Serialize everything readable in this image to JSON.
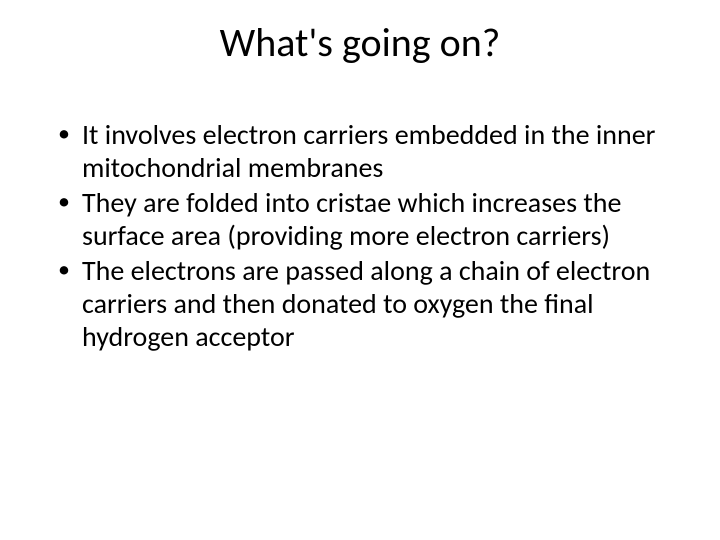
{
  "slide": {
    "title": "What's going on?",
    "bullets": [
      "It involves electron carriers embedded in the inner mitochondrial membranes",
      "They are folded into cristae which increases the surface area (providing more electron carriers)",
      "The electrons are passed along a chain of electron carriers and then donated to oxygen the final hydrogen acceptor"
    ]
  },
  "style": {
    "background_color": "#ffffff",
    "text_color": "#000000",
    "title_fontsize": 40,
    "body_fontsize": 28,
    "font_family": "Calibri"
  }
}
